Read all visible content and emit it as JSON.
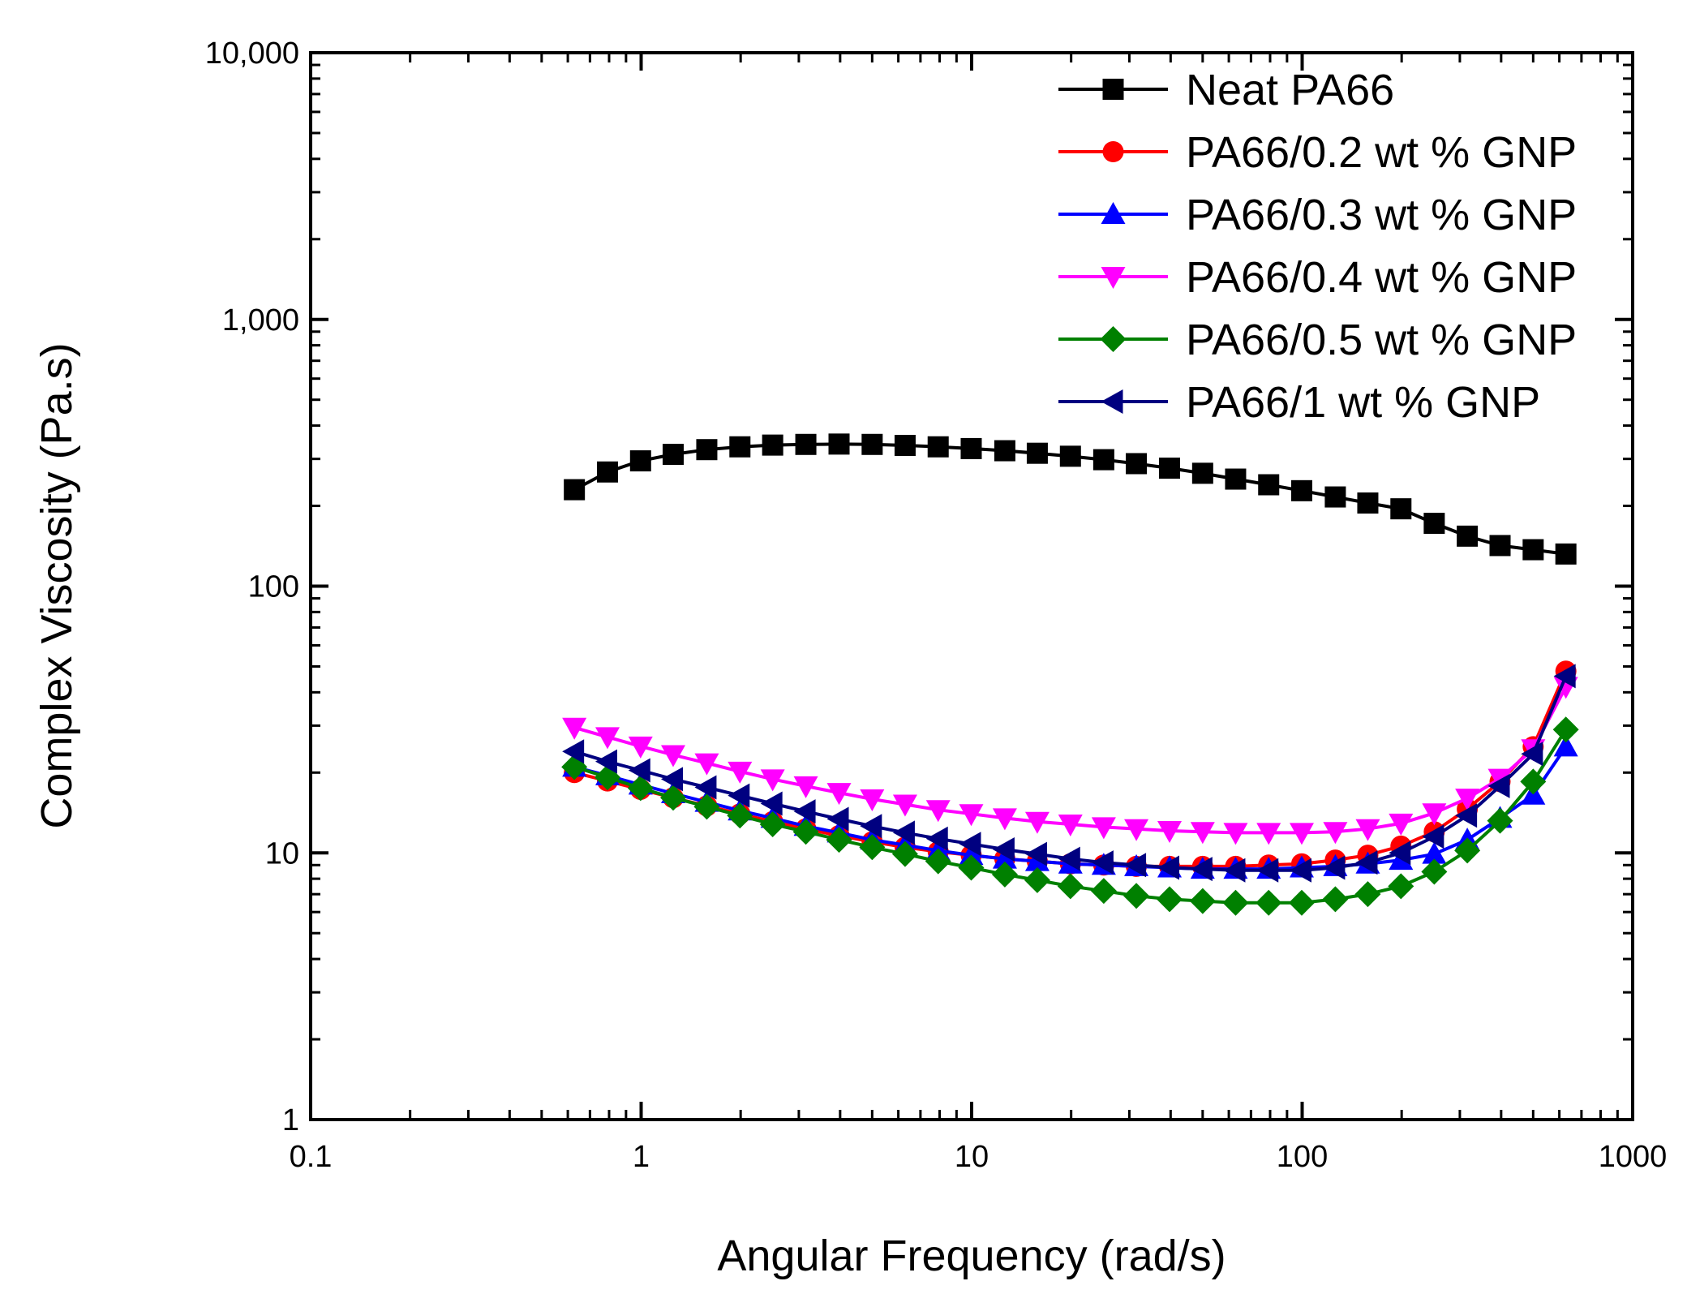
{
  "chart_data": {
    "type": "line",
    "title": "",
    "xlabel": "Angular Frequency (rad/s)",
    "ylabel": "Complex Viscosity (Pa.s)",
    "xscale": "log",
    "yscale": "log",
    "xlim": [
      0.1,
      1000
    ],
    "ylim": [
      1,
      10000
    ],
    "xticks": [
      {
        "value": 0.1,
        "label": "0.1"
      },
      {
        "value": 1,
        "label": "1"
      },
      {
        "value": 10,
        "label": "10"
      },
      {
        "value": 100,
        "label": "100"
      },
      {
        "value": 1000,
        "label": "1000"
      }
    ],
    "yticks": [
      {
        "value": 1,
        "label": "1"
      },
      {
        "value": 10,
        "label": "10"
      },
      {
        "value": 100,
        "label": "100"
      },
      {
        "value": 1000,
        "label": "1,000"
      },
      {
        "value": 10000,
        "label": "10,000"
      }
    ],
    "legend_position": "top-right",
    "grid": false,
    "x": [
      0.628,
      0.791,
      0.996,
      1.25,
      1.58,
      1.99,
      2.5,
      3.15,
      3.97,
      5.0,
      6.29,
      7.92,
      9.97,
      12.6,
      15.8,
      19.9,
      25.1,
      31.5,
      39.7,
      50.0,
      62.9,
      79.2,
      99.7,
      126,
      158,
      199,
      251,
      316,
      397,
      500,
      628
    ],
    "series": [
      {
        "name": "Neat PA66",
        "color": "#000000",
        "marker": "square",
        "values": [
          230,
          268,
          295,
          312,
          325,
          333,
          338,
          340,
          341,
          340,
          337,
          333,
          328,
          322,
          315,
          307,
          298,
          288,
          277,
          265,
          252,
          240,
          228,
          216,
          205,
          195,
          172,
          154,
          142,
          137,
          132
        ]
      },
      {
        "name": "PA66/0.2 wt % GNP",
        "color": "#ff0000",
        "marker": "circle",
        "values": [
          20.0,
          18.6,
          17.3,
          16.1,
          15.0,
          14.0,
          13.1,
          12.3,
          11.6,
          11.0,
          10.5,
          10.1,
          9.8,
          9.5,
          9.3,
          9.1,
          9.0,
          8.9,
          8.9,
          8.9,
          8.9,
          9.0,
          9.1,
          9.4,
          9.8,
          10.6,
          12.0,
          14.6,
          18.5,
          25.0,
          48.0
        ]
      },
      {
        "name": "PA66/0.3 wt % GNP",
        "color": "#0000ff",
        "marker": "triangle-up",
        "values": [
          21.0,
          19.5,
          18.0,
          16.7,
          15.5,
          14.4,
          13.5,
          12.6,
          11.9,
          11.2,
          10.7,
          10.2,
          9.8,
          9.5,
          9.3,
          9.1,
          9.0,
          8.9,
          8.8,
          8.7,
          8.7,
          8.7,
          8.8,
          8.9,
          9.1,
          9.4,
          9.9,
          11.2,
          13.5,
          16.5,
          25.0
        ]
      },
      {
        "name": "PA66/0.4 wt % GNP",
        "color": "#ff00ff",
        "marker": "triangle-down",
        "values": [
          29.5,
          27.2,
          25.1,
          23.3,
          21.7,
          20.2,
          18.9,
          17.8,
          16.8,
          15.9,
          15.2,
          14.5,
          14.0,
          13.5,
          13.1,
          12.8,
          12.5,
          12.3,
          12.1,
          12.0,
          11.9,
          11.9,
          11.9,
          12.0,
          12.3,
          12.9,
          14.1,
          16.0,
          19.0,
          24.5,
          42.0
        ]
      },
      {
        "name": "PA66/0.5 wt % GNP",
        "color": "#008000",
        "marker": "diamond",
        "values": [
          21.0,
          19.2,
          17.5,
          16.1,
          14.9,
          13.8,
          12.8,
          12.0,
          11.2,
          10.5,
          9.9,
          9.3,
          8.8,
          8.3,
          7.9,
          7.5,
          7.2,
          6.9,
          6.7,
          6.6,
          6.5,
          6.5,
          6.5,
          6.7,
          7.0,
          7.5,
          8.5,
          10.2,
          13.2,
          18.5,
          29.0
        ]
      },
      {
        "name": "PA66/1 wt % GNP",
        "color": "#000080",
        "marker": "triangle-left",
        "values": [
          24.0,
          22.0,
          20.4,
          18.9,
          17.6,
          16.4,
          15.3,
          14.3,
          13.4,
          12.6,
          11.9,
          11.3,
          10.8,
          10.3,
          9.9,
          9.5,
          9.2,
          9.0,
          8.8,
          8.7,
          8.6,
          8.6,
          8.6,
          8.8,
          9.2,
          10.0,
          11.5,
          13.8,
          17.8,
          23.5,
          46.0
        ]
      }
    ]
  }
}
